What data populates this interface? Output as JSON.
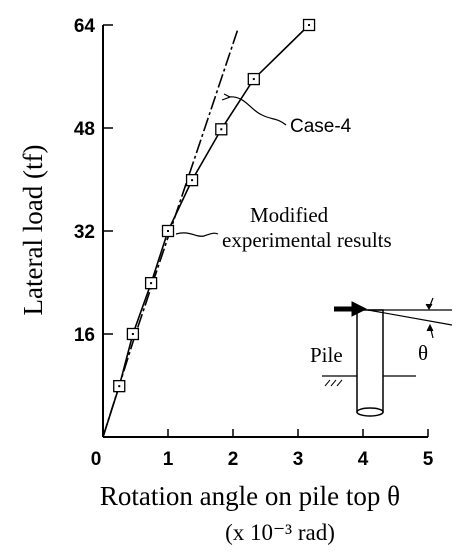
{
  "chart_data": {
    "type": "line",
    "y_label": "Lateral load (tf)",
    "x_label": "Rotation angle on pile top θ",
    "x_unit": "(x 10⁻³ rad)",
    "annotations": [
      "Case-4",
      "Modified",
      "experimental results",
      "Pile",
      "θ"
    ],
    "xlim": [
      0,
      5
    ],
    "xticks": [
      0,
      1,
      2,
      3,
      4,
      5
    ],
    "ylim": [
      0,
      64
    ],
    "yticks": [
      16,
      32,
      48,
      64
    ],
    "series": [
      {
        "style": "dash-dot",
        "color": "#000000",
        "x": [
          0,
          0.5,
          1.0,
          1.5,
          2.08
        ],
        "values": [
          0,
          16,
          31,
          46,
          63.5
        ]
      },
      {
        "style": "square-markers",
        "color": "#000000",
        "x": [
          0,
          0.25,
          0.46,
          0.74,
          1.0,
          1.37,
          1.82,
          2.32,
          3.17
        ],
        "values": [
          0,
          7.9,
          16,
          23.9,
          32,
          39.9,
          47.8,
          55.6,
          64
        ]
      }
    ]
  }
}
